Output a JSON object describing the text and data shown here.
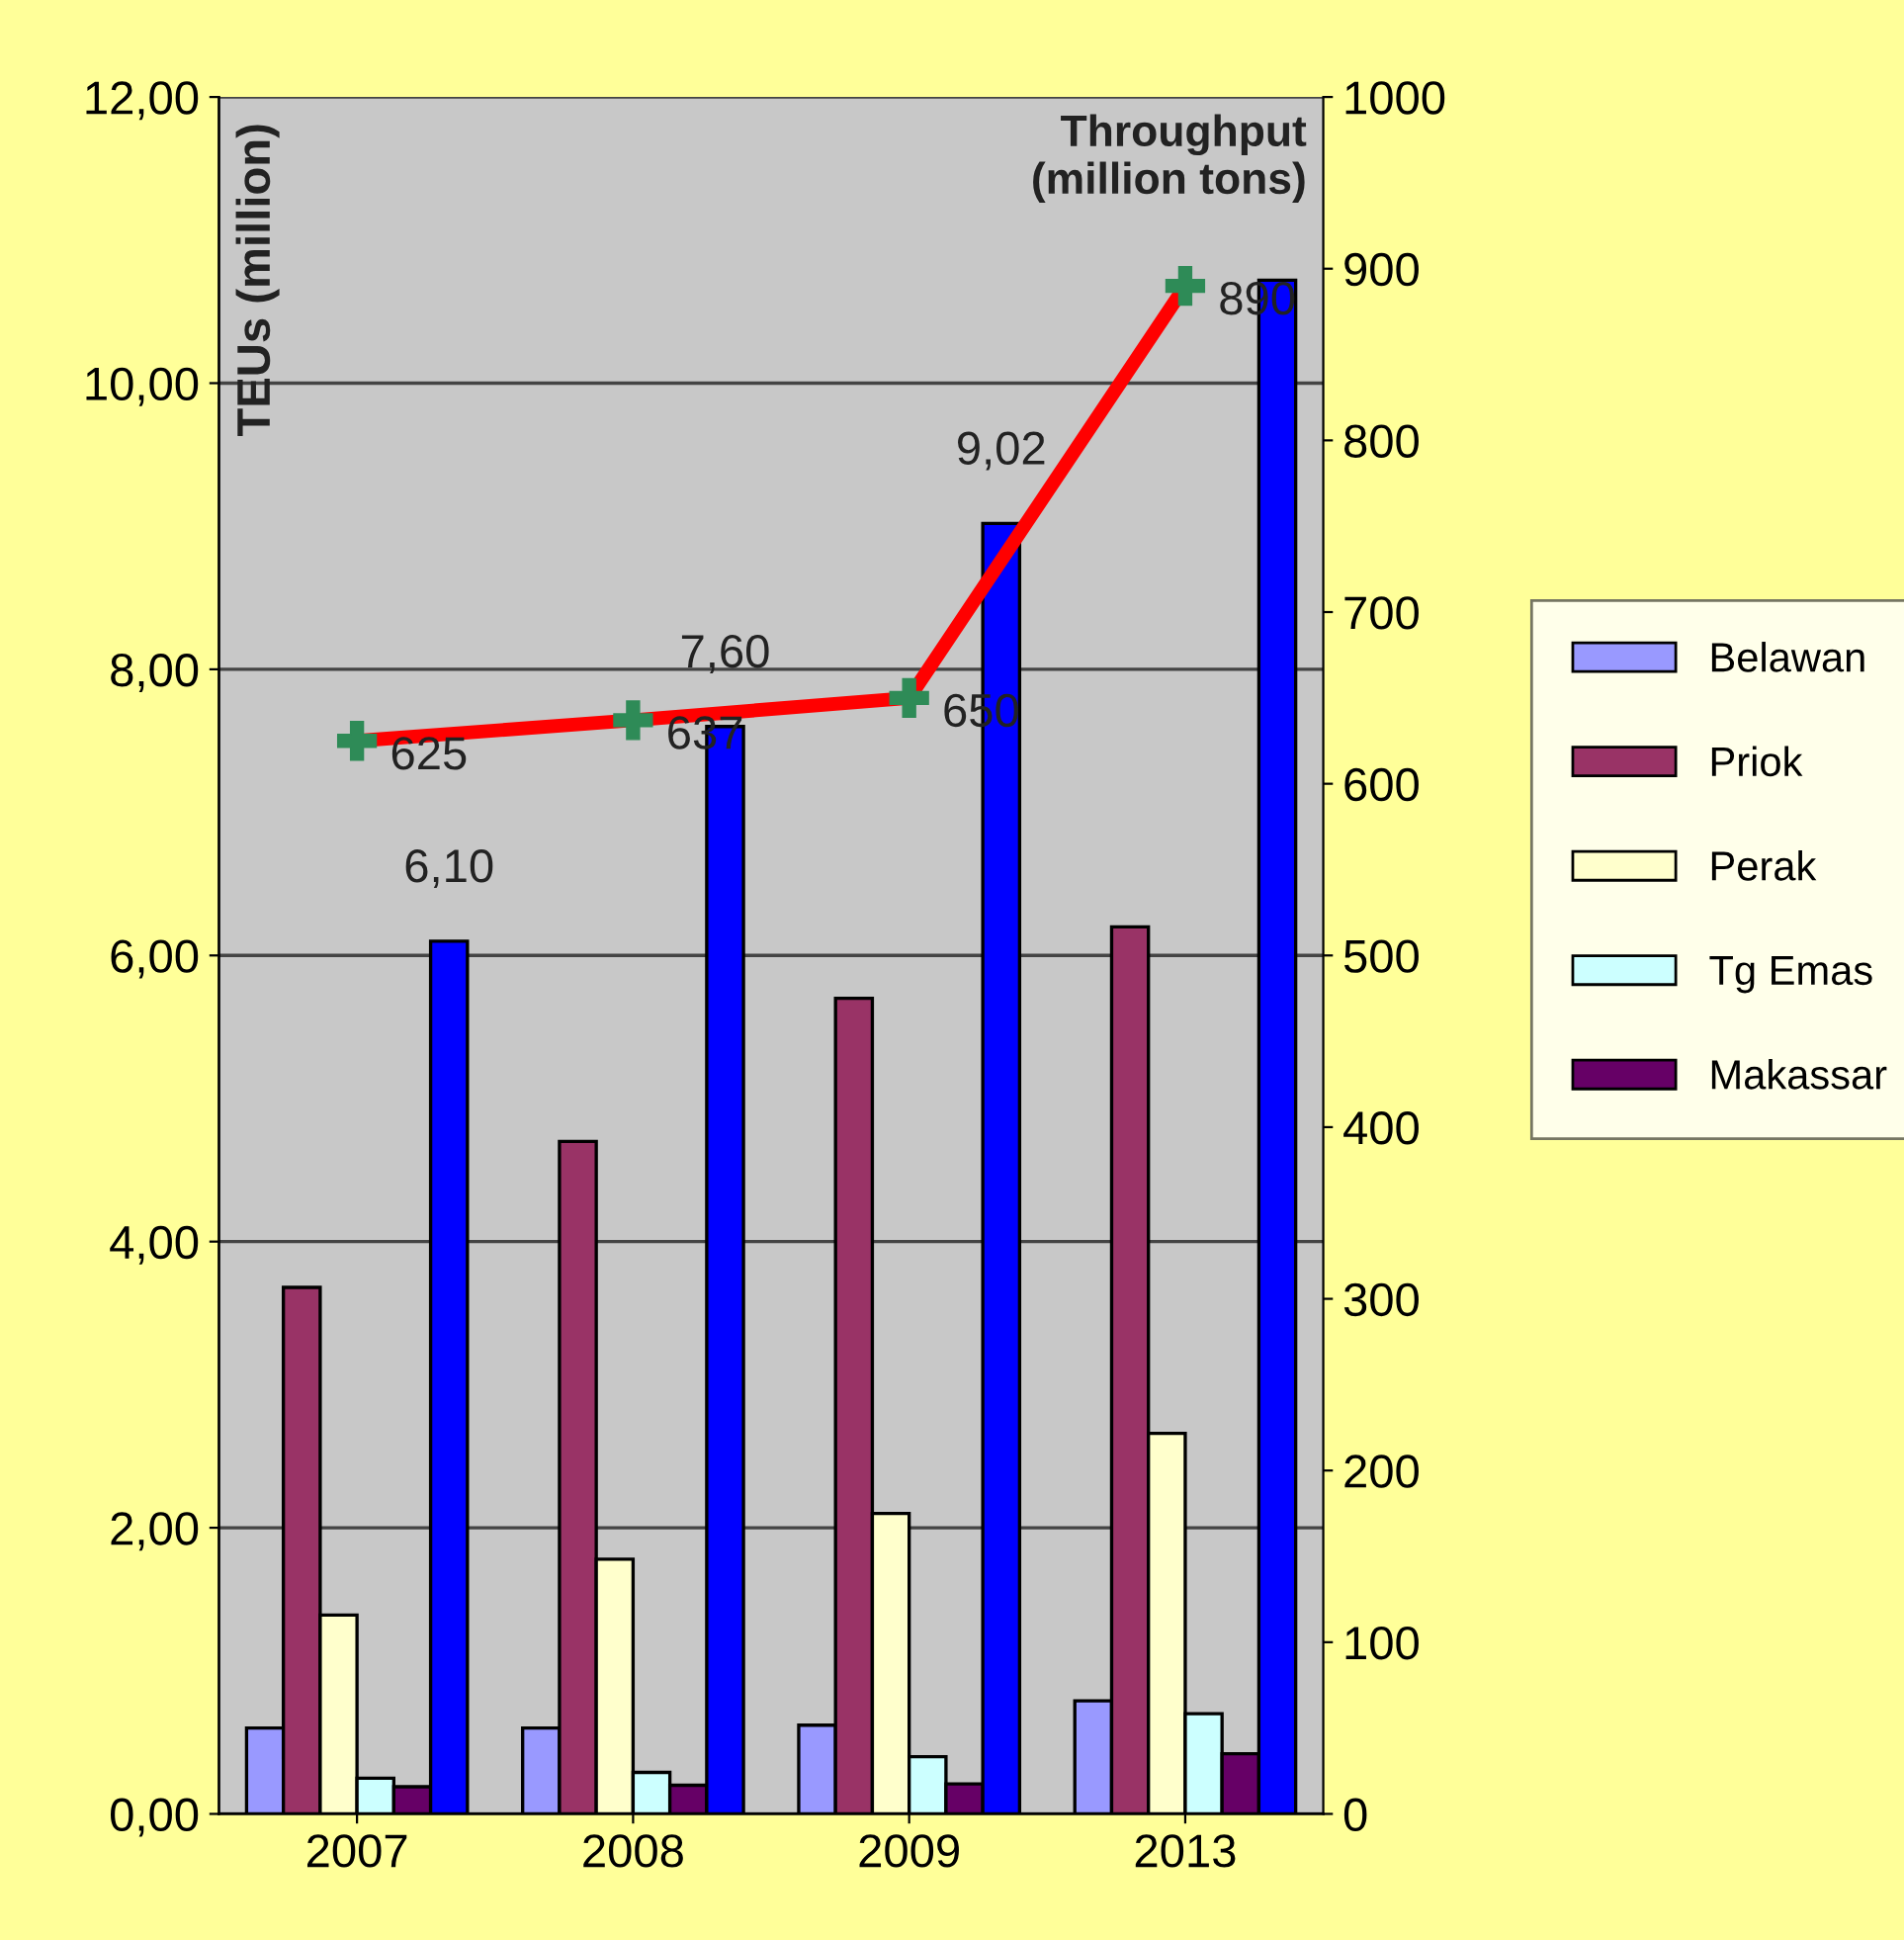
{
  "chart_data": {
    "type": "bar",
    "ylabel": "TEUs (million)",
    "y2label": "Throughput\n(million tons)",
    "categories": [
      "2007",
      "2008",
      "2009",
      "2013"
    ],
    "series": [
      {
        "name": "Belawan",
        "color": "#9999ff",
        "values": [
          0.6,
          0.6,
          0.62,
          0.79
        ]
      },
      {
        "name": "Priok",
        "color": "#993366",
        "values": [
          3.68,
          4.7,
          5.7,
          6.2
        ]
      },
      {
        "name": "Perak",
        "color": "#ffffcc",
        "values": [
          1.39,
          1.78,
          2.1,
          2.66
        ]
      },
      {
        "name": "Tg Emas",
        "color": "#ccffff",
        "values": [
          0.25,
          0.29,
          0.4,
          0.7
        ]
      },
      {
        "name": "Makassar",
        "color": "#660066",
        "values": [
          0.19,
          0.2,
          0.21,
          0.42
        ]
      },
      {
        "color": "#0000ff",
        "values": [
          6.1,
          7.6,
          9.02,
          10.72
        ],
        "value_labels": [
          "6,10",
          "7,60",
          "9,02",
          null
        ]
      },
      {
        "type": "line",
        "axis": "y2",
        "color": "#ff0000",
        "marker": "cross",
        "values": [
          625,
          637,
          650,
          890
        ],
        "value_labels": [
          "625",
          "637",
          "650",
          "890"
        ]
      }
    ],
    "ylim": [
      0,
      12
    ],
    "yticks": [
      {
        "value": 0,
        "label": "0,00"
      },
      {
        "value": 2,
        "label": "2,00"
      },
      {
        "value": 4,
        "label": "4,00"
      },
      {
        "value": 6,
        "label": "6,00"
      },
      {
        "value": 8,
        "label": "8,00"
      },
      {
        "value": 10,
        "label": "10,00"
      },
      {
        "value": 12,
        "label": "12,00"
      }
    ],
    "y2lim": [
      0,
      1000
    ],
    "y2ticks": [
      0,
      100,
      200,
      300,
      400,
      500,
      600,
      700,
      800,
      900,
      1000
    ],
    "grid": "y",
    "legend": "right"
  }
}
